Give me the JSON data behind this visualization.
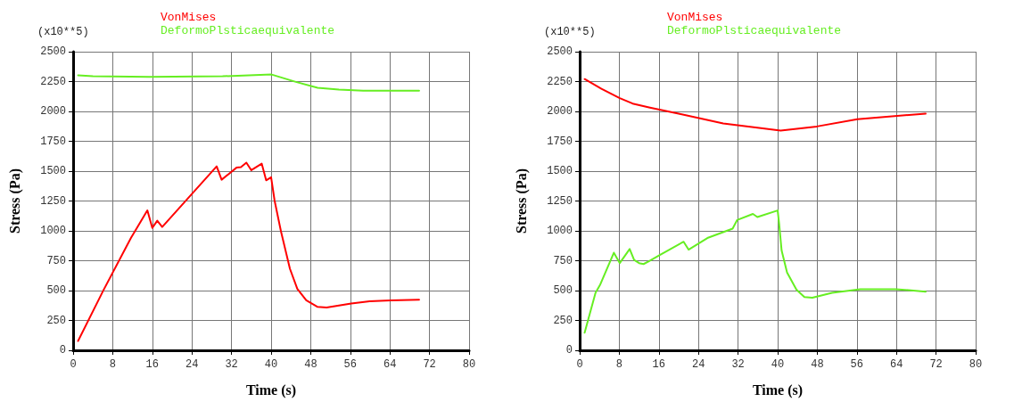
{
  "chart_data": [
    {
      "type": "line",
      "xlabel": "Time (s)",
      "ylabel": "Stress (Pa)",
      "annotations": [
        "(x10**5)"
      ],
      "xlim": [
        0,
        80
      ],
      "xticks": [
        0,
        8,
        16,
        24,
        32,
        40,
        48,
        56,
        64,
        72,
        80
      ],
      "ylim": [
        0,
        2500
      ],
      "yticks": [
        0,
        250,
        500,
        750,
        1000,
        1250,
        1500,
        1750,
        2000,
        2250,
        2500
      ],
      "grid": true,
      "legend": "top",
      "marker": "none",
      "line_style": "solid",
      "series": [
        {
          "name": "VonMises",
          "color": "#ff0000",
          "x": [
            1,
            6.1,
            11.7,
            15,
            16,
            17,
            18,
            29,
            30,
            33,
            33.9,
            35,
            36,
            38.1,
            39,
            40,
            40.7,
            42,
            43.8,
            45.3,
            47.1,
            49.4,
            51.2,
            56.2,
            59.9,
            64.2,
            69.9
          ],
          "values": [
            78,
            501,
            942,
            1171,
            1025,
            1085,
            1033,
            1540,
            1428,
            1529,
            1534,
            1571,
            1508,
            1563,
            1423,
            1449,
            1254,
            994,
            683,
            514,
            418,
            363,
            358,
            392,
            410,
            418,
            423
          ]
        },
        {
          "name": "DeformoPlsticaequivalente",
          "color": "#66ee22",
          "x": [
            1,
            4,
            15.4,
            30.2,
            40.1,
            45,
            49.4,
            53.7,
            58.6,
            69.9
          ],
          "values": [
            2302,
            2294,
            2289,
            2294,
            2309,
            2247,
            2198,
            2183,
            2173,
            2173
          ]
        }
      ]
    },
    {
      "type": "line",
      "xlabel": "Time (s)",
      "ylabel": "Stress (Pa)",
      "annotations": [
        "(x10**5)"
      ],
      "xlim": [
        0,
        80
      ],
      "xticks": [
        0,
        8,
        16,
        24,
        32,
        40,
        48,
        56,
        64,
        72,
        80
      ],
      "ylim": [
        0,
        2500
      ],
      "yticks": [
        0,
        250,
        500,
        750,
        1000,
        1250,
        1500,
        1750,
        2000,
        2250,
        2500
      ],
      "grid": true,
      "legend": "top",
      "marker": "none",
      "line_style": "solid",
      "series": [
        {
          "name": "VonMises",
          "color": "#ff0000",
          "x": [
            1,
            4.4,
            8.1,
            10.7,
            14.2,
            20.2,
            29,
            40.6,
            47.9,
            56.1,
            69.9
          ],
          "values": [
            2271,
            2189,
            2111,
            2066,
            2032,
            1979,
            1900,
            1839,
            1874,
            1934,
            1982
          ]
        },
        {
          "name": "DeformoPlsticaequivalente",
          "color": "#66ee22",
          "x": [
            1,
            3.2,
            4.1,
            6.9,
            8.1,
            10.1,
            11,
            12,
            12.9,
            13.9,
            16.1,
            21,
            22,
            25.8,
            30.9,
            31.8,
            35,
            35.9,
            40,
            40.3,
            40.8,
            41.9,
            43.8,
            45.4,
            47,
            51,
            56.7,
            63.9,
            69.9
          ],
          "values": [
            147,
            481,
            546,
            817,
            730,
            848,
            756,
            730,
            722,
            743,
            796,
            909,
            843,
            940,
            1019,
            1090,
            1142,
            1116,
            1171,
            1058,
            835,
            651,
            507,
            446,
            441,
            481,
            512,
            512,
            491
          ]
        }
      ]
    }
  ]
}
